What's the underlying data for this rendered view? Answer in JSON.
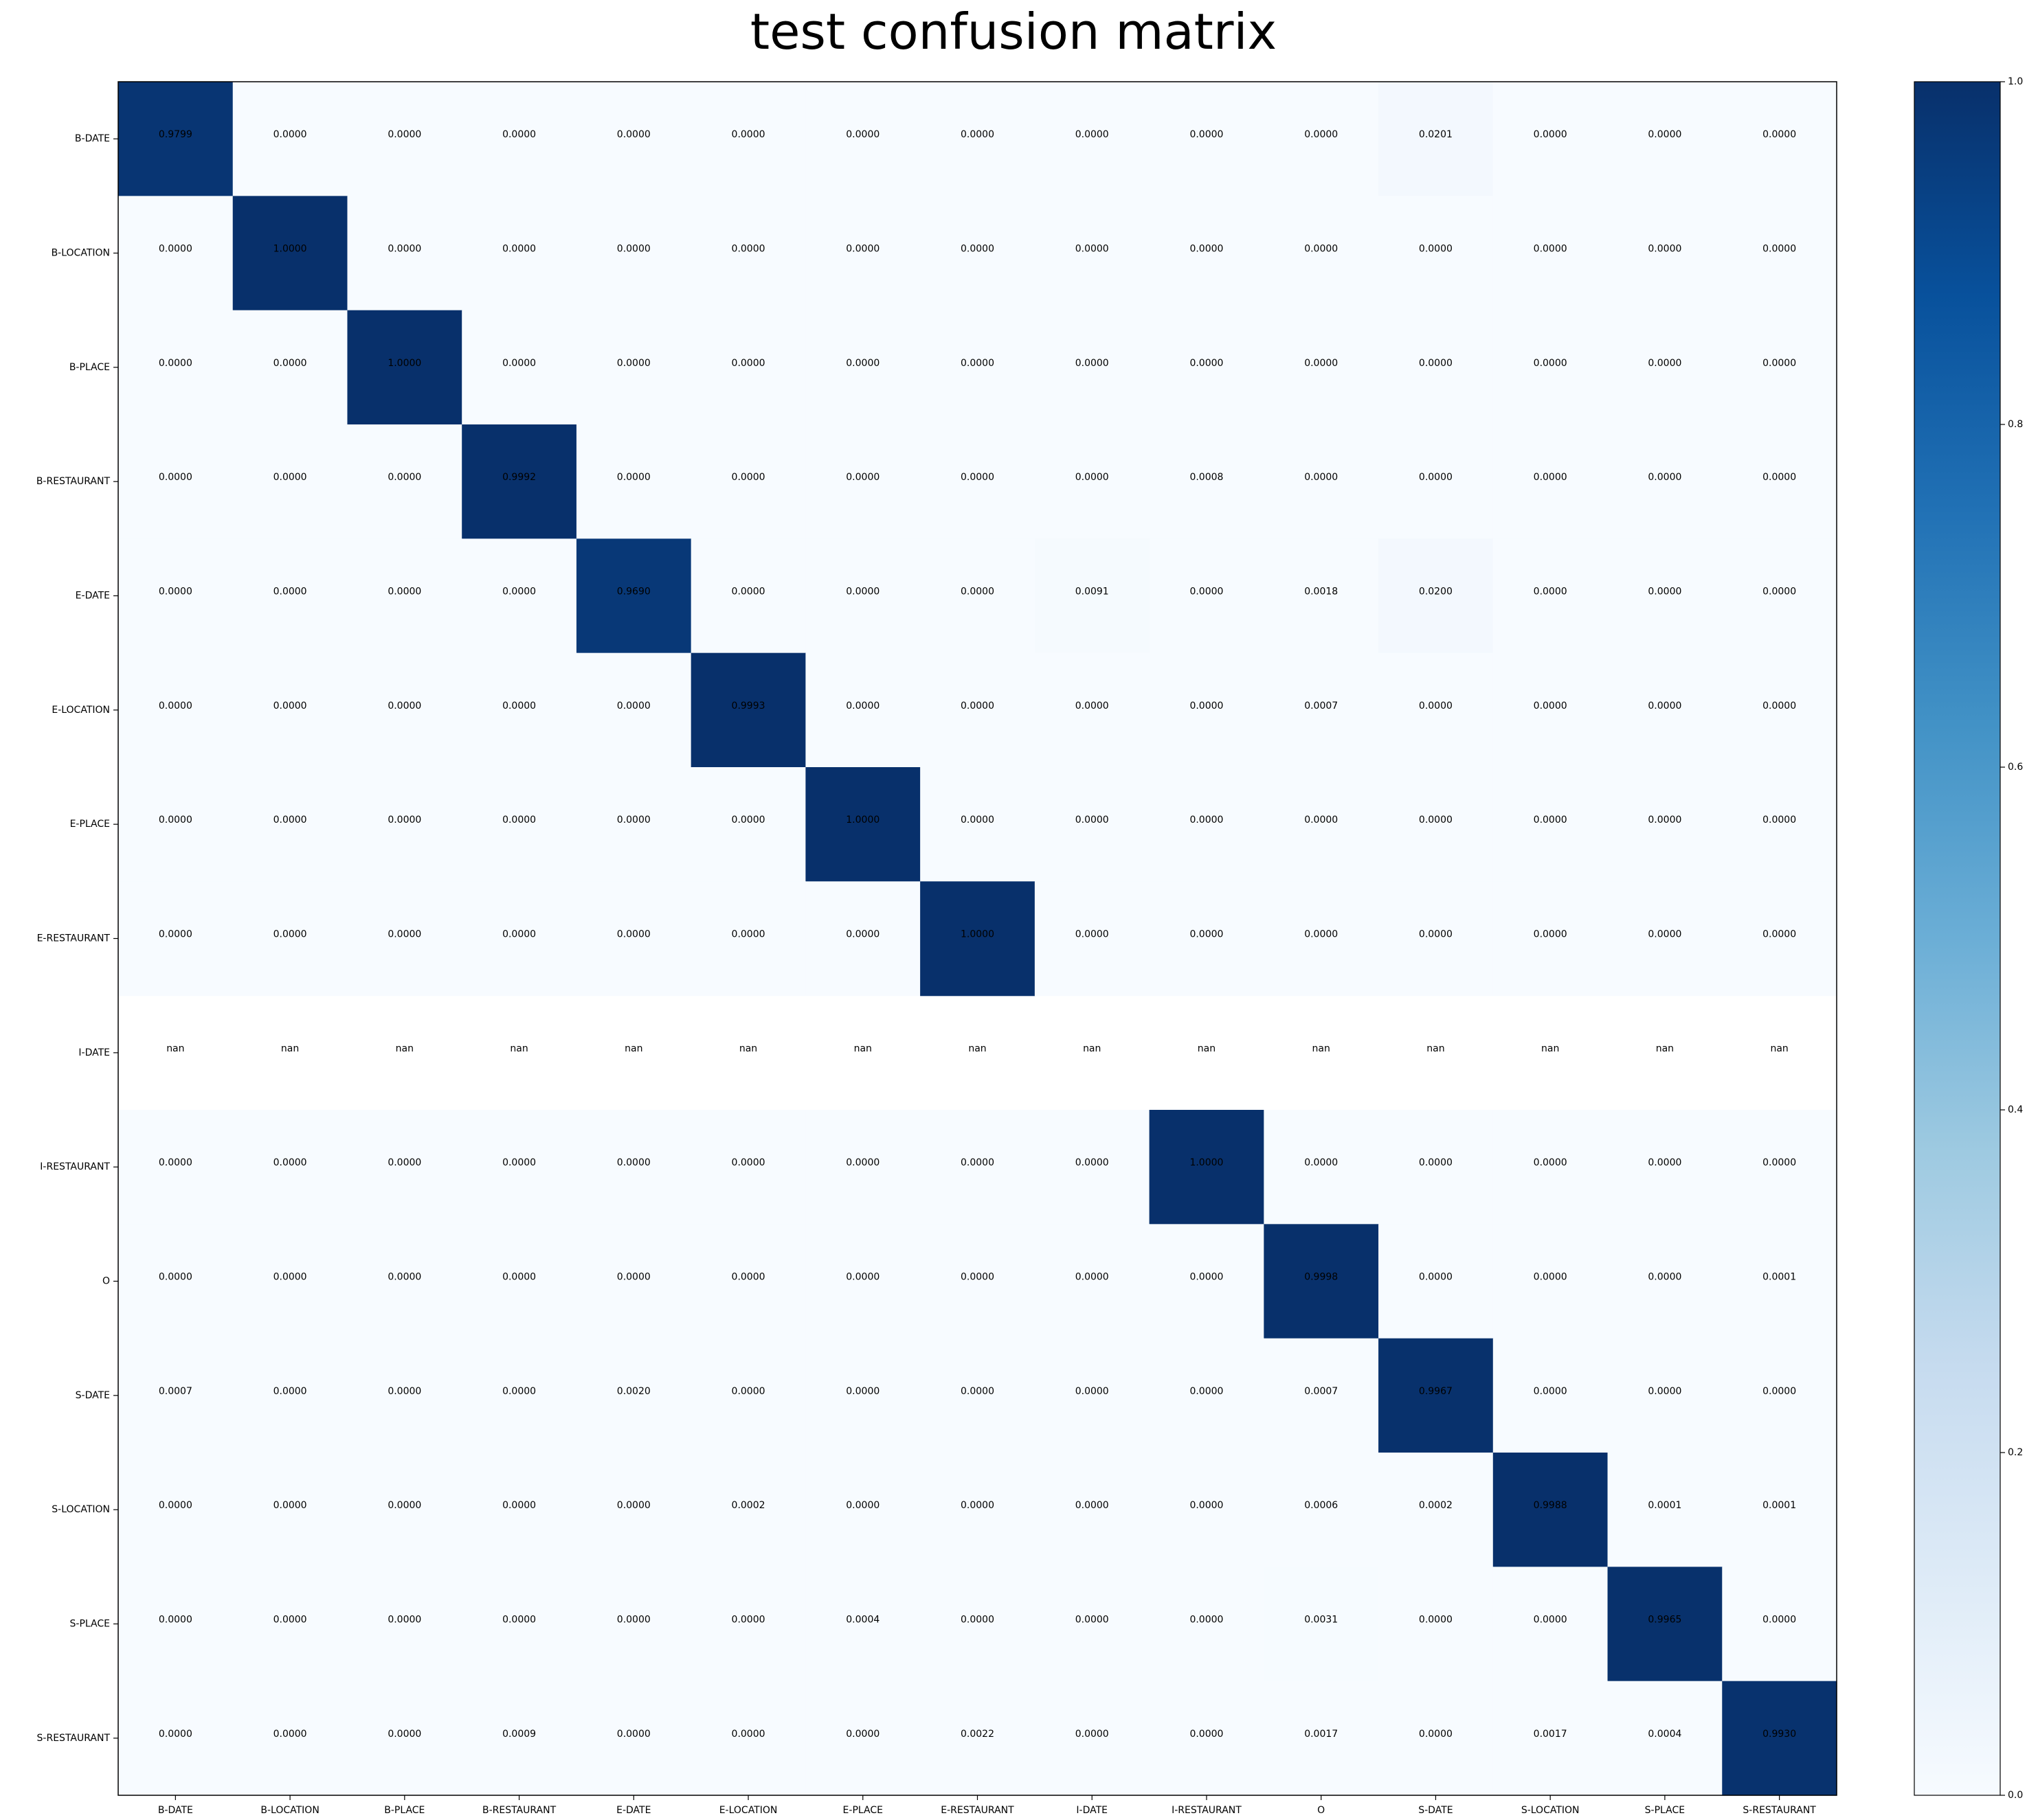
{
  "chart_data": {
    "type": "heatmap",
    "title": "test confusion matrix",
    "xlabel": "",
    "ylabel": "",
    "row_labels": [
      "B-DATE",
      "B-LOCATION",
      "B-PLACE",
      "B-RESTAURANT",
      "E-DATE",
      "E-LOCATION",
      "E-PLACE",
      "E-RESTAURANT",
      "I-DATE",
      "I-RESTAURANT",
      "O",
      "S-DATE",
      "S-LOCATION",
      "S-PLACE",
      "S-RESTAURANT"
    ],
    "col_labels": [
      "B-DATE",
      "B-LOCATION",
      "B-PLACE",
      "B-RESTAURANT",
      "E-DATE",
      "E-LOCATION",
      "E-PLACE",
      "E-RESTAURANT",
      "I-DATE",
      "I-RESTAURANT",
      "O",
      "S-DATE",
      "S-LOCATION",
      "S-PLACE",
      "S-RESTAURANT"
    ],
    "values": [
      [
        "0.9799",
        "0.0000",
        "0.0000",
        "0.0000",
        "0.0000",
        "0.0000",
        "0.0000",
        "0.0000",
        "0.0000",
        "0.0000",
        "0.0000",
        "0.0201",
        "0.0000",
        "0.0000",
        "0.0000"
      ],
      [
        "0.0000",
        "1.0000",
        "0.0000",
        "0.0000",
        "0.0000",
        "0.0000",
        "0.0000",
        "0.0000",
        "0.0000",
        "0.0000",
        "0.0000",
        "0.0000",
        "0.0000",
        "0.0000",
        "0.0000"
      ],
      [
        "0.0000",
        "0.0000",
        "1.0000",
        "0.0000",
        "0.0000",
        "0.0000",
        "0.0000",
        "0.0000",
        "0.0000",
        "0.0000",
        "0.0000",
        "0.0000",
        "0.0000",
        "0.0000",
        "0.0000"
      ],
      [
        "0.0000",
        "0.0000",
        "0.0000",
        "0.9992",
        "0.0000",
        "0.0000",
        "0.0000",
        "0.0000",
        "0.0000",
        "0.0008",
        "0.0000",
        "0.0000",
        "0.0000",
        "0.0000",
        "0.0000"
      ],
      [
        "0.0000",
        "0.0000",
        "0.0000",
        "0.0000",
        "0.9690",
        "0.0000",
        "0.0000",
        "0.0000",
        "0.0091",
        "0.0000",
        "0.0018",
        "0.0200",
        "0.0000",
        "0.0000",
        "0.0000"
      ],
      [
        "0.0000",
        "0.0000",
        "0.0000",
        "0.0000",
        "0.0000",
        "0.9993",
        "0.0000",
        "0.0000",
        "0.0000",
        "0.0000",
        "0.0007",
        "0.0000",
        "0.0000",
        "0.0000",
        "0.0000"
      ],
      [
        "0.0000",
        "0.0000",
        "0.0000",
        "0.0000",
        "0.0000",
        "0.0000",
        "1.0000",
        "0.0000",
        "0.0000",
        "0.0000",
        "0.0000",
        "0.0000",
        "0.0000",
        "0.0000",
        "0.0000"
      ],
      [
        "0.0000",
        "0.0000",
        "0.0000",
        "0.0000",
        "0.0000",
        "0.0000",
        "0.0000",
        "1.0000",
        "0.0000",
        "0.0000",
        "0.0000",
        "0.0000",
        "0.0000",
        "0.0000",
        "0.0000"
      ],
      [
        "nan",
        "nan",
        "nan",
        "nan",
        "nan",
        "nan",
        "nan",
        "nan",
        "nan",
        "nan",
        "nan",
        "nan",
        "nan",
        "nan",
        "nan"
      ],
      [
        "0.0000",
        "0.0000",
        "0.0000",
        "0.0000",
        "0.0000",
        "0.0000",
        "0.0000",
        "0.0000",
        "0.0000",
        "1.0000",
        "0.0000",
        "0.0000",
        "0.0000",
        "0.0000",
        "0.0000"
      ],
      [
        "0.0000",
        "0.0000",
        "0.0000",
        "0.0000",
        "0.0000",
        "0.0000",
        "0.0000",
        "0.0000",
        "0.0000",
        "0.0000",
        "0.9998",
        "0.0000",
        "0.0000",
        "0.0000",
        "0.0001"
      ],
      [
        "0.0007",
        "0.0000",
        "0.0000",
        "0.0000",
        "0.0020",
        "0.0000",
        "0.0000",
        "0.0000",
        "0.0000",
        "0.0000",
        "0.0007",
        "0.9967",
        "0.0000",
        "0.0000",
        "0.0000"
      ],
      [
        "0.0000",
        "0.0000",
        "0.0000",
        "0.0000",
        "0.0000",
        "0.0002",
        "0.0000",
        "0.0000",
        "0.0000",
        "0.0000",
        "0.0006",
        "0.0002",
        "0.9988",
        "0.0001",
        "0.0001"
      ],
      [
        "0.0000",
        "0.0000",
        "0.0000",
        "0.0000",
        "0.0000",
        "0.0000",
        "0.0004",
        "0.0000",
        "0.0000",
        "0.0000",
        "0.0031",
        "0.0000",
        "0.0000",
        "0.9965",
        "0.0000"
      ],
      [
        "0.0000",
        "0.0000",
        "0.0000",
        "0.0009",
        "0.0000",
        "0.0000",
        "0.0000",
        "0.0022",
        "0.0000",
        "0.0000",
        "0.0017",
        "0.0000",
        "0.0017",
        "0.0004",
        "0.9930"
      ]
    ],
    "colorbar": {
      "colormap": "Blues",
      "range": [
        0.0,
        1.0
      ],
      "ticks": [
        "0.0",
        "0.2",
        "0.4",
        "0.6",
        "0.8",
        "1.0"
      ]
    },
    "colors": {
      "low": "#f7fbff",
      "high": "#08306b"
    },
    "grid": false
  }
}
